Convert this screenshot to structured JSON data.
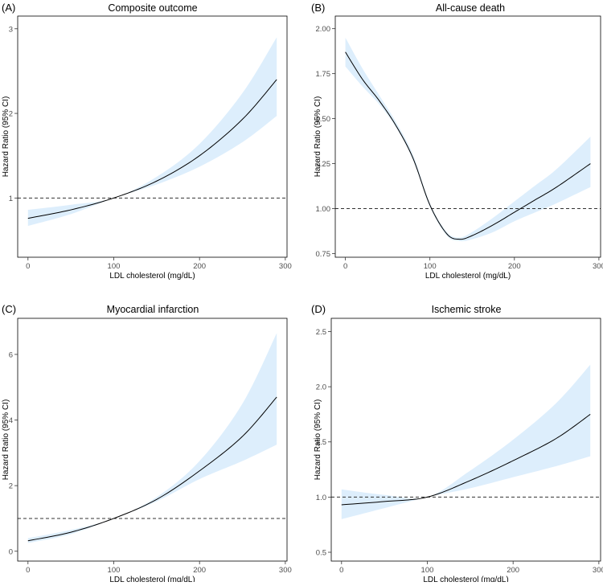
{
  "chart_data": [
    {
      "type": "line",
      "panel_label": "(A)",
      "title": "Composite outcome",
      "xlabel": "LDL cholesterol (mg/dL)",
      "ylabel": "Hazard Ratio (95% CI)",
      "xlim": [
        -12,
        302
      ],
      "ylim": [
        0.3,
        3.15
      ],
      "xticks": [
        0,
        100,
        200,
        300
      ],
      "xtick_labels": [
        "0",
        "100",
        "200",
        "300"
      ],
      "yticks": [
        1,
        2,
        3
      ],
      "ytick_labels": [
        "1",
        "2",
        "3"
      ],
      "reference_line": 1.0,
      "ci_color": "#ddeefc",
      "line_color": "#000000",
      "series": [
        {
          "name": "Hazard ratio",
          "x": [
            0,
            50,
            100,
            150,
            200,
            250,
            290
          ],
          "y": [
            0.76,
            0.86,
            1.0,
            1.2,
            1.5,
            1.93,
            2.4
          ],
          "lower": [
            0.67,
            0.81,
            1.0,
            1.16,
            1.37,
            1.66,
            1.97
          ],
          "upper": [
            0.86,
            0.92,
            1.0,
            1.25,
            1.64,
            2.24,
            2.9
          ]
        }
      ]
    },
    {
      "type": "line",
      "panel_label": "(B)",
      "title": "All-cause death",
      "xlabel": "LDL cholesterol (mg/dL)",
      "ylabel": "Hazard Ratio (95% CI)",
      "xlim": [
        -12,
        302
      ],
      "ylim": [
        0.73,
        2.07
      ],
      "xticks": [
        0,
        100,
        200,
        300
      ],
      "xtick_labels": [
        "0",
        "100",
        "200",
        "300"
      ],
      "yticks": [
        0.75,
        1.0,
        1.25,
        1.5,
        1.75,
        2.0
      ],
      "ytick_labels": [
        "0.75",
        "1.00",
        "1.25",
        "1.50",
        "1.75",
        "2.00"
      ],
      "reference_line": 1.0,
      "ci_color": "#ddeefc",
      "line_color": "#000000",
      "series": [
        {
          "name": "Hazard ratio",
          "x": [
            0,
            20,
            40,
            60,
            80,
            100,
            120,
            135,
            150,
            175,
            200,
            225,
            250,
            290
          ],
          "y": [
            1.87,
            1.72,
            1.6,
            1.46,
            1.28,
            1.02,
            0.86,
            0.83,
            0.85,
            0.91,
            0.98,
            1.05,
            1.12,
            1.25
          ],
          "lower": [
            1.79,
            1.68,
            1.58,
            1.45,
            1.27,
            1.01,
            0.85,
            0.82,
            0.83,
            0.87,
            0.93,
            0.98,
            1.03,
            1.12
          ],
          "upper": [
            1.95,
            1.78,
            1.63,
            1.48,
            1.3,
            1.03,
            0.87,
            0.84,
            0.87,
            0.95,
            1.04,
            1.13,
            1.22,
            1.4
          ]
        }
      ]
    },
    {
      "type": "line",
      "panel_label": "(C)",
      "title": "Myocardial infarction",
      "xlabel": "LDL cholesterol (mg/dL)",
      "ylabel": "Hazard Ratio (95% CI)",
      "xlim": [
        -12,
        302
      ],
      "ylim": [
        -0.3,
        7.1
      ],
      "xticks": [
        0,
        100,
        200,
        300
      ],
      "xtick_labels": [
        "0",
        "100",
        "200",
        "300"
      ],
      "yticks": [
        0,
        2,
        4,
        6
      ],
      "ytick_labels": [
        "0",
        "2",
        "4",
        "6"
      ],
      "reference_line": 1.0,
      "ci_color": "#ddeefc",
      "line_color": "#000000",
      "series": [
        {
          "name": "Hazard ratio",
          "x": [
            0,
            50,
            100,
            150,
            200,
            250,
            290
          ],
          "y": [
            0.32,
            0.58,
            1.0,
            1.58,
            2.45,
            3.5,
            4.7
          ],
          "lower": [
            0.25,
            0.52,
            1.0,
            1.52,
            2.2,
            2.75,
            3.25
          ],
          "upper": [
            0.4,
            0.65,
            1.0,
            1.65,
            2.75,
            4.5,
            6.65
          ]
        }
      ]
    },
    {
      "type": "line",
      "panel_label": "(D)",
      "title": "Ischemic stroke",
      "xlabel": "LDL cholesterol (mg/dL)",
      "ylabel": "Hazard Ratio (95% CI)",
      "xlim": [
        -12,
        302
      ],
      "ylim": [
        0.42,
        2.62
      ],
      "xticks": [
        0,
        100,
        200,
        300
      ],
      "xtick_labels": [
        "0",
        "100",
        "200",
        "300"
      ],
      "yticks": [
        0.5,
        1.0,
        1.5,
        2.0,
        2.5
      ],
      "ytick_labels": [
        "0.5",
        "1.0",
        "1.5",
        "2.0",
        "2.5"
      ],
      "reference_line": 1.0,
      "ci_color": "#ddeefc",
      "line_color": "#000000",
      "series": [
        {
          "name": "Hazard ratio",
          "x": [
            0,
            50,
            100,
            150,
            200,
            250,
            290
          ],
          "y": [
            0.93,
            0.96,
            1.0,
            1.15,
            1.33,
            1.53,
            1.75
          ],
          "lower": [
            0.8,
            0.9,
            1.0,
            1.08,
            1.18,
            1.28,
            1.37
          ],
          "upper": [
            1.07,
            1.02,
            1.0,
            1.24,
            1.52,
            1.85,
            2.2
          ]
        }
      ]
    }
  ]
}
